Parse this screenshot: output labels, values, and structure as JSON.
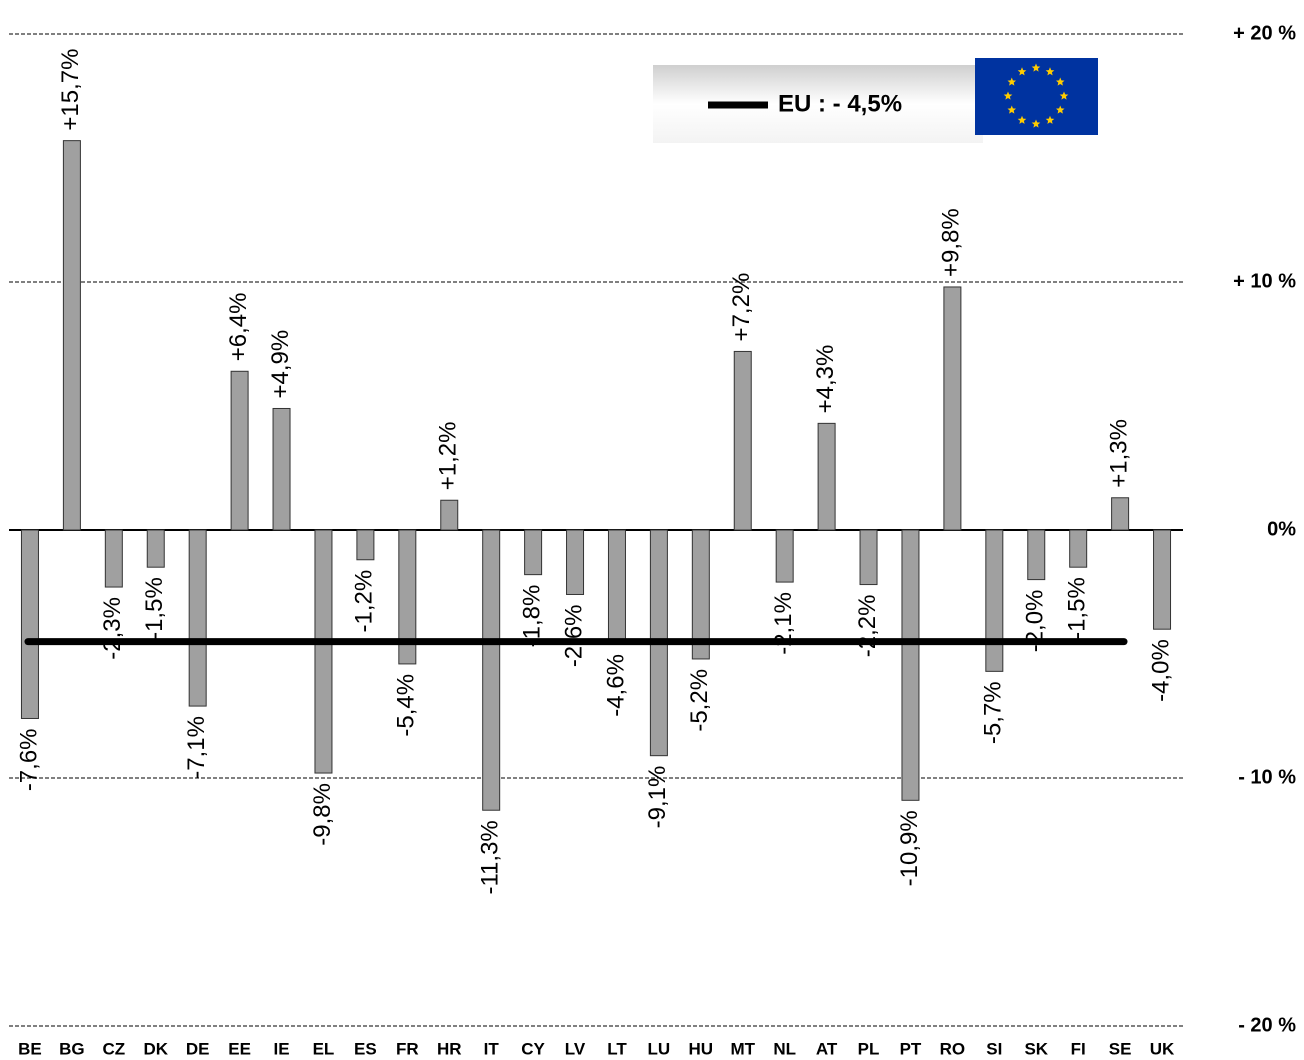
{
  "chart_data": {
    "type": "bar",
    "categories": [
      "BE",
      "BG",
      "CZ",
      "DK",
      "DE",
      "EE",
      "IE",
      "EL",
      "ES",
      "FR",
      "HR",
      "IT",
      "CY",
      "LV",
      "LT",
      "LU",
      "HU",
      "MT",
      "NL",
      "AT",
      "PL",
      "PT",
      "RO",
      "SI",
      "SK",
      "FI",
      "SE",
      "UK"
    ],
    "values": [
      -7.6,
      15.7,
      -2.3,
      -1.5,
      -7.1,
      6.4,
      4.9,
      -9.8,
      -1.2,
      -5.4,
      1.2,
      -11.3,
      -1.8,
      -2.6,
      -4.6,
      -9.1,
      -5.2,
      7.2,
      -2.1,
      4.3,
      -2.2,
      -10.9,
      9.8,
      -5.7,
      -2.0,
      -1.5,
      1.3,
      -4.0
    ],
    "value_labels": [
      "-7,6%",
      "+15,7%",
      "-2,3%",
      "-1,5%",
      "-7,1%",
      "+6,4%",
      "+4,9%",
      "-9,8%",
      "-1,2%",
      "-5,4%",
      "+1,2%",
      "-11,3%",
      "-1,8%",
      "-2,6%",
      "-4,6%",
      "-9,1%",
      "-5,2%",
      "+7,2%",
      "-2,1%",
      "+4,3%",
      "-2,2%",
      "-10,9%",
      "+9,8%",
      "-5,7%",
      "-2,0%",
      "-1,5%",
      "+1,3%",
      "-4,0%"
    ],
    "color": "#a0a0a0",
    "ylim": [
      -20,
      20
    ],
    "yticks": [
      {
        "value": 20,
        "label": "+ 20 %"
      },
      {
        "value": 10,
        "label": "+ 10 %"
      },
      {
        "value": 0,
        "label": "0%"
      },
      {
        "value": -10,
        "label": "- 10 %"
      },
      {
        "value": -20,
        "label": "- 20 %"
      }
    ],
    "grid": true,
    "reference_line": {
      "value": -4.5,
      "label": "EU :  - 4,5%",
      "color": "#000000"
    }
  }
}
